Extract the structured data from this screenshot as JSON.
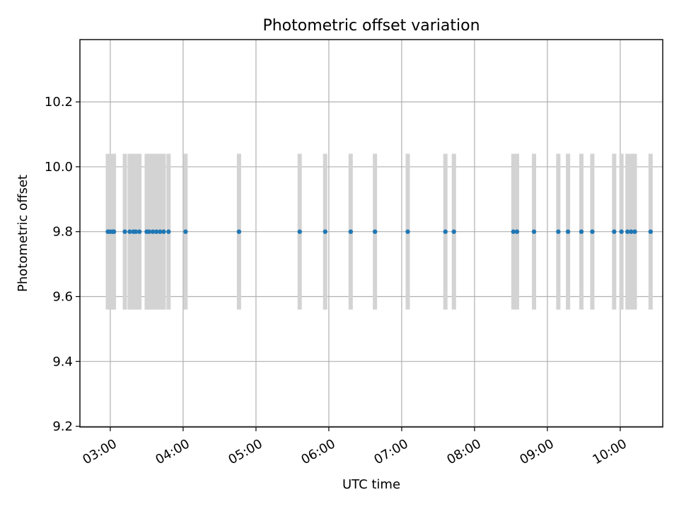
{
  "chart_data": {
    "type": "scatter",
    "title": "Photometric offset variation",
    "xlabel": "UTC time",
    "ylabel": "Photometric offset",
    "xlim": [
      "02:35",
      "10:35"
    ],
    "ylim": [
      9.198,
      10.392
    ],
    "xticks": [
      "03:00",
      "04:00",
      "05:00",
      "06:00",
      "07:00",
      "08:00",
      "09:00",
      "10:00"
    ],
    "yticks": [
      9.2,
      9.4,
      9.6,
      9.8,
      10.0,
      10.2
    ],
    "grid": true,
    "colors": {
      "points": "#1f77b4",
      "errorbars": "#d3d3d3"
    },
    "series": [
      {
        "x": [
          "02:58",
          "03:00",
          "03:02",
          "03:03",
          "03:12",
          "03:16",
          "03:19",
          "03:21",
          "03:24",
          "03:30",
          "03:32",
          "03:35",
          "03:38",
          "03:41",
          "03:44",
          "03:48",
          "04:02",
          "04:46",
          "05:36",
          "05:57",
          "06:18",
          "06:38",
          "07:05",
          "07:36",
          "07:43",
          "08:32",
          "08:35",
          "08:49",
          "09:09",
          "09:17",
          "09:28",
          "09:37",
          "09:55",
          "10:01",
          "10:06",
          "10:09",
          "10:12",
          "10:25"
        ],
        "y": [
          9.8,
          9.8,
          9.8,
          9.8,
          9.8,
          9.8,
          9.8,
          9.8,
          9.8,
          9.8,
          9.8,
          9.8,
          9.8,
          9.8,
          9.8,
          9.8,
          9.8,
          9.8,
          9.8,
          9.8,
          9.8,
          9.8,
          9.8,
          9.8,
          9.8,
          9.8,
          9.8,
          9.8,
          9.8,
          9.8,
          9.8,
          9.8,
          9.8,
          9.8,
          9.8,
          9.8,
          9.8,
          9.8
        ],
        "yerr": 0.24
      }
    ]
  }
}
